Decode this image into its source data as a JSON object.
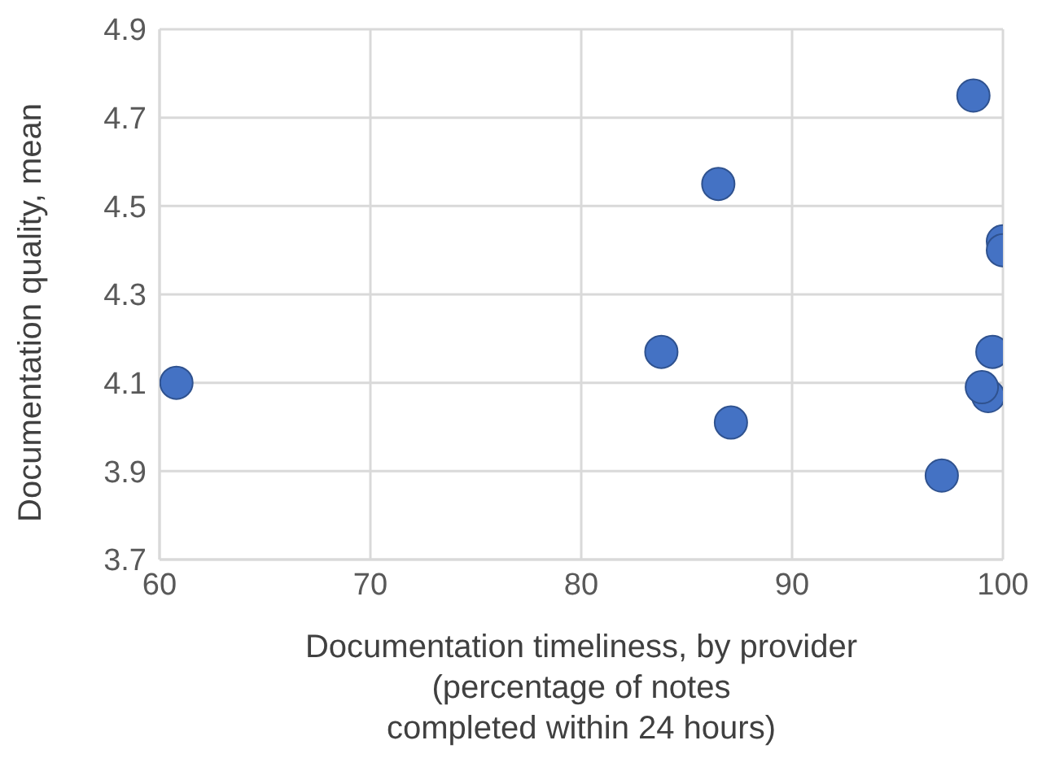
{
  "chart_data": {
    "type": "scatter",
    "xlabel": "Documentation timeliness, by provider\n(percentage of notes\ncompleted within 24 hours)",
    "ylabel": "Documentation quality, mean",
    "x": [
      60.8,
      86.5,
      83.8,
      87.1,
      98.6,
      100,
      100,
      99.5,
      99.3,
      99.0,
      97.1
    ],
    "values": [
      4.1,
      4.55,
      4.17,
      4.01,
      4.75,
      4.42,
      4.4,
      4.17,
      4.07,
      4.09,
      3.89
    ],
    "color": "#4472c4",
    "marker": "circle",
    "xlim": [
      60,
      100
    ],
    "xticks": [
      60,
      70,
      80,
      90,
      100
    ],
    "ylim": [
      3.7,
      4.9
    ],
    "yticks": [
      3.7,
      3.9,
      4.1,
      4.3,
      4.5,
      4.7,
      4.9
    ],
    "grid": true
  }
}
